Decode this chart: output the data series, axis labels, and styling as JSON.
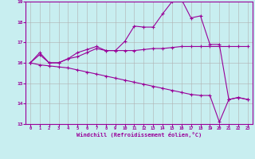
{
  "xlabel": "Windchill (Refroidissement éolien,°C)",
  "x": [
    0,
    1,
    2,
    3,
    4,
    5,
    6,
    7,
    8,
    9,
    10,
    11,
    12,
    13,
    14,
    15,
    16,
    17,
    18,
    19,
    20,
    21,
    22,
    23
  ],
  "line1": [
    16.0,
    16.5,
    16.0,
    16.0,
    16.2,
    16.5,
    16.65,
    16.8,
    16.6,
    16.6,
    17.05,
    17.8,
    17.75,
    17.75,
    18.4,
    19.0,
    19.1,
    18.2,
    18.3,
    16.9,
    16.9,
    14.2,
    14.3,
    14.2
  ],
  "line2": [
    16.0,
    16.4,
    16.0,
    16.0,
    16.2,
    16.3,
    16.5,
    16.7,
    16.6,
    16.6,
    16.6,
    16.6,
    16.65,
    16.7,
    16.7,
    16.75,
    16.8,
    16.8,
    16.8,
    16.8,
    16.8,
    16.8,
    16.8,
    16.8
  ],
  "line3": [
    16.0,
    15.9,
    15.85,
    15.8,
    15.75,
    15.65,
    15.55,
    15.45,
    15.35,
    15.25,
    15.15,
    15.05,
    14.95,
    14.85,
    14.75,
    14.65,
    14.55,
    14.45,
    14.4,
    14.4,
    13.1,
    14.2,
    14.3,
    14.2
  ],
  "line_color": "#990099",
  "bg_color": "#c8eef0",
  "grid_color": "#b0b0b0",
  "ylim": [
    13,
    19
  ],
  "xlim": [
    -0.5,
    23.5
  ],
  "yticks": [
    13,
    14,
    15,
    16,
    17,
    18,
    19
  ],
  "xticks": [
    0,
    1,
    2,
    3,
    4,
    5,
    6,
    7,
    8,
    9,
    10,
    11,
    12,
    13,
    14,
    15,
    16,
    17,
    18,
    19,
    20,
    21,
    22,
    23
  ],
  "marker": "+",
  "markersize": 3,
  "linewidth": 0.8
}
